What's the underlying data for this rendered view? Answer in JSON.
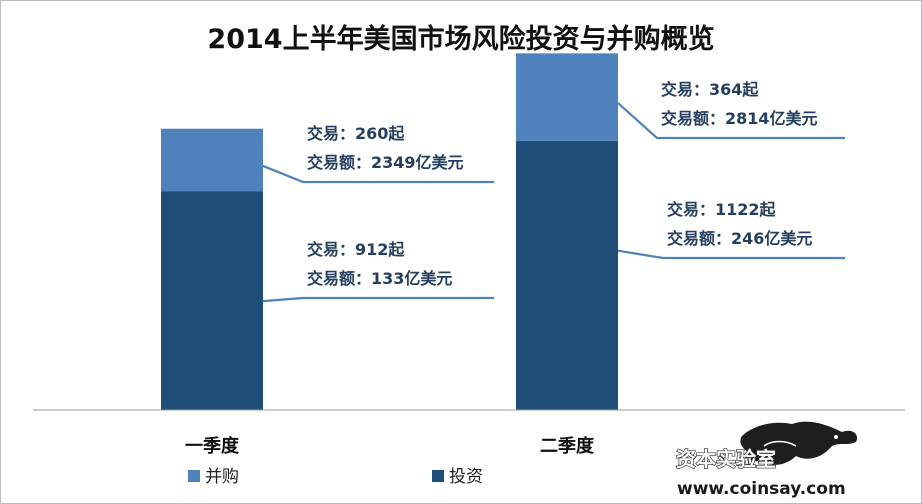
{
  "chart_data": {
    "type": "bar",
    "stacked": true,
    "title": "2014上半年美国市场风险投资与并购概览",
    "categories": [
      "一季度",
      "二季度"
    ],
    "series": [
      {
        "name": "投资",
        "color": "#1f4e79",
        "values": [
          912,
          1122
        ]
      },
      {
        "name": "并购",
        "color": "#4f81bd",
        "values": [
          260,
          364
        ]
      }
    ],
    "ylim": [
      0,
      1500
    ],
    "grid": false,
    "legend": "bottom-left",
    "annotations": [
      {
        "category": "一季度",
        "series": "并购",
        "line1": "交易：260起",
        "line2": "交易额：2349亿美元"
      },
      {
        "category": "一季度",
        "series": "投资",
        "line1": "交易：912起",
        "line2": "交易额：133亿美元"
      },
      {
        "category": "二季度",
        "series": "并购",
        "line1": "交易：364起",
        "line2": "交易额：2814亿美元"
      },
      {
        "category": "二季度",
        "series": "投资",
        "line1": "交易：1122起",
        "line2": "交易额：246亿美元"
      }
    ]
  },
  "watermark": {
    "text": "资本实验室",
    "url": "www.coinsay.com",
    "icon": "panther-logo-icon"
  }
}
